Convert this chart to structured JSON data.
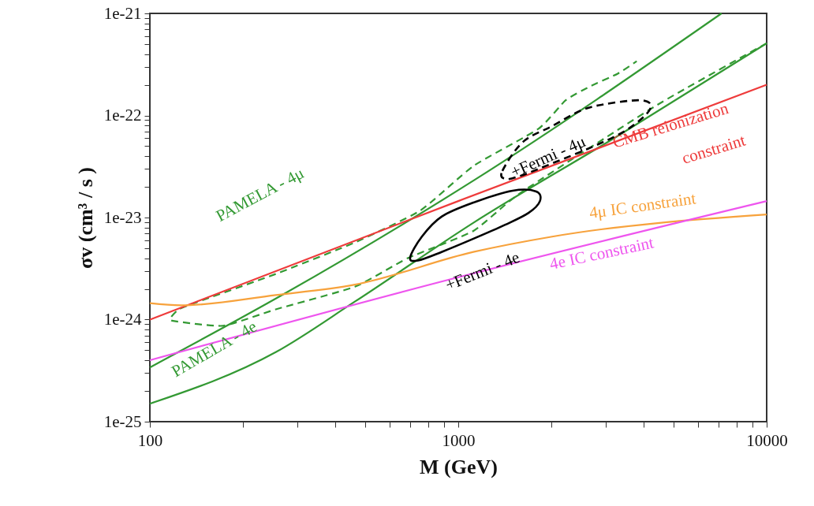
{
  "chart_data": {
    "type": "line",
    "xlabel": "M (GeV)",
    "ylabel": "σv (cm³ / s )",
    "log": "xy",
    "grid": false,
    "xlim": [
      100,
      10000
    ],
    "xticks": [
      100,
      {
        "value": 200,
        "label": null
      },
      {
        "value": 300,
        "label": null
      },
      {
        "value": 400,
        "label": null
      },
      {
        "value": 500,
        "label": null
      },
      {
        "value": 600,
        "label": null
      },
      {
        "value": 700,
        "label": null
      },
      {
        "value": 800,
        "label": null
      },
      {
        "value": 900,
        "label": null
      },
      1000,
      {
        "value": 2000,
        "label": null
      },
      {
        "value": 3000,
        "label": null
      },
      {
        "value": 4000,
        "label": null
      },
      {
        "value": 5000,
        "label": null
      },
      {
        "value": 6000,
        "label": null
      },
      {
        "value": 7000,
        "label": null
      },
      {
        "value": 8000,
        "label": null
      },
      {
        "value": 9000,
        "label": null
      },
      10000
    ],
    "ylim": [
      1e-25,
      1e-21
    ],
    "yticks": [
      {
        "value": 1e-25,
        "label": "1e-25"
      },
      {
        "value": 2e-25,
        "label": null
      },
      {
        "value": 3e-25,
        "label": null
      },
      {
        "value": 4e-25,
        "label": null
      },
      {
        "value": 5e-25,
        "label": null
      },
      {
        "value": 6e-25,
        "label": null
      },
      {
        "value": 7e-25,
        "label": null
      },
      {
        "value": 8e-25,
        "label": null
      },
      {
        "value": 9e-25,
        "label": null
      },
      {
        "value": 1e-24,
        "label": "1e-24"
      },
      {
        "value": 2e-24,
        "label": null
      },
      {
        "value": 3e-24,
        "label": null
      },
      {
        "value": 4e-24,
        "label": null
      },
      {
        "value": 5e-24,
        "label": null
      },
      {
        "value": 6e-24,
        "label": null
      },
      {
        "value": 7e-24,
        "label": null
      },
      {
        "value": 8e-24,
        "label": null
      },
      {
        "value": 9e-24,
        "label": null
      },
      {
        "value": 1e-23,
        "label": "1e-23"
      },
      {
        "value": 2e-23,
        "label": null
      },
      {
        "value": 3e-23,
        "label": null
      },
      {
        "value": 4e-23,
        "label": null
      },
      {
        "value": 5e-23,
        "label": null
      },
      {
        "value": 6e-23,
        "label": null
      },
      {
        "value": 7e-23,
        "label": null
      },
      {
        "value": 8e-23,
        "label": null
      },
      {
        "value": 9e-23,
        "label": null
      },
      {
        "value": 1e-22,
        "label": "1e-22"
      },
      {
        "value": 2e-22,
        "label": null
      },
      {
        "value": 3e-22,
        "label": null
      },
      {
        "value": 4e-22,
        "label": null
      },
      {
        "value": 5e-22,
        "label": null
      },
      {
        "value": 6e-22,
        "label": null
      },
      {
        "value": 7e-22,
        "label": null
      },
      {
        "value": 8e-22,
        "label": null
      },
      {
        "value": 9e-22,
        "label": null
      },
      {
        "value": 1e-21,
        "label": "1e-21"
      }
    ],
    "series": [
      {
        "color": "#339933",
        "line_style": "solid",
        "x": [
          100,
          272,
          1120,
          7140
        ],
        "values": [
          3.4e-25,
          1.78e-24,
          2.3e-23,
          1e-21
        ]
      },
      {
        "color": "#339933",
        "line_style": "solid",
        "x": [
          100,
          256,
          462,
          1120,
          3290,
          10000
        ],
        "values": [
          1.5e-25,
          4.8e-25,
          1.5e-24,
          8.9e-24,
          6.3e-23,
          5.1e-22
        ]
      },
      {
        "color": "#339933",
        "line_style": "dashed",
        "x": [
          10000,
          4420,
          1590,
          1120,
          686,
          462,
          256,
          173,
          119,
          117,
          124,
          142,
          256,
          462,
          753,
          1120,
          1820,
          2230,
          2660,
          3290,
          3790
        ],
        "values": [
          5.1e-22,
          1.27e-22,
          1.74e-23,
          7.4e-24,
          4e-24,
          2.1e-24,
          1.26e-24,
          8.7e-25,
          9.7e-25,
          1.05e-24,
          1.26e-24,
          1.48e-24,
          2.8e-24,
          5.7e-24,
          1.17e-23,
          3.2e-23,
          7.4e-23,
          1.41e-22,
          1.91e-22,
          2.57e-22,
          3.4e-22
        ]
      },
      {
        "color": "#ee3b3b",
        "line_style": "solid",
        "x": [
          100,
          1000,
          10000
        ],
        "values": [
          1e-24,
          1.45e-23,
          2e-22
        ]
      },
      {
        "color": "#f7a23c",
        "line_style": "solid",
        "x": [
          100,
          126,
          256,
          462,
          1119,
          2015,
          10000
        ],
        "values": [
          1.45e-24,
          1.38e-24,
          1.74e-24,
          2.2e-24,
          4.6e-24,
          6.5e-24,
          1.07e-23
        ]
      },
      {
        "color": "#ee55ee",
        "line_style": "solid",
        "x": [
          100,
          1000,
          10000
        ],
        "values": [
          4e-25,
          2.6e-24,
          1.45e-23
        ]
      }
    ],
    "annotations": [
      "PAMELA - 4μ",
      "+Fermi - 4μ",
      "CMB reionization",
      "constraint",
      "4μ IC constraint",
      "4e IC constraint",
      "+Fermi - 4e",
      "PAMELA - 4e"
    ]
  }
}
